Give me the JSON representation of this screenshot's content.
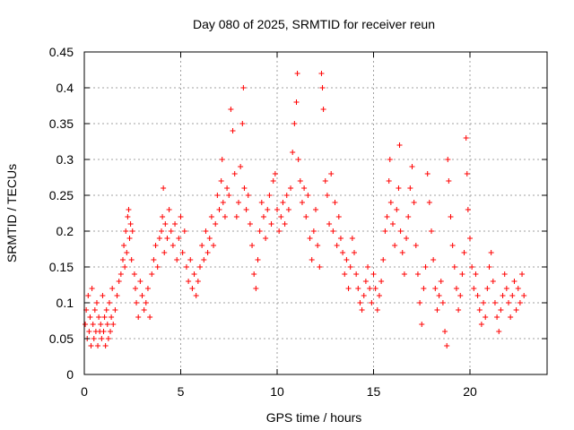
{
  "chart_data": {
    "type": "scatter",
    "title": "Day 080 of 2025, SRMTID for receiver reun",
    "xlabel": "GPS time / hours",
    "ylabel": "SRMTID / TECUs",
    "xlim": [
      0,
      24
    ],
    "ylim": [
      0,
      0.45
    ],
    "xticks": [
      0,
      5,
      10,
      15,
      20
    ],
    "xtick_labels": [
      "0",
      "5",
      "10",
      "15",
      "20"
    ],
    "yticks": [
      0,
      0.05,
      0.1,
      0.15,
      0.2,
      0.25,
      0.3,
      0.35,
      0.4,
      0.45
    ],
    "ytick_labels": [
      "0",
      "0.05",
      "0.1",
      "0.15",
      "0.2",
      "0.25",
      "0.3",
      "0.35",
      "0.4",
      "0.45"
    ],
    "grid": true,
    "marker": "+",
    "marker_color": "#ff0000",
    "series": [
      {
        "name": "SRMTID",
        "points": [
          [
            0.05,
            0.07
          ],
          [
            0.1,
            0.09
          ],
          [
            0.15,
            0.05
          ],
          [
            0.2,
            0.11
          ],
          [
            0.25,
            0.06
          ],
          [
            0.3,
            0.08
          ],
          [
            0.35,
            0.04
          ],
          [
            0.4,
            0.12
          ],
          [
            0.45,
            0.07
          ],
          [
            0.5,
            0.05
          ],
          [
            0.55,
            0.09
          ],
          [
            0.6,
            0.06
          ],
          [
            0.65,
            0.1
          ],
          [
            0.7,
            0.04
          ],
          [
            0.75,
            0.08
          ],
          [
            0.8,
            0.06
          ],
          [
            0.85,
            0.07
          ],
          [
            0.9,
            0.05
          ],
          [
            0.95,
            0.11
          ],
          [
            1.0,
            0.06
          ],
          [
            1.05,
            0.08
          ],
          [
            1.1,
            0.04
          ],
          [
            1.15,
            0.09
          ],
          [
            1.2,
            0.07
          ],
          [
            1.25,
            0.05
          ],
          [
            1.3,
            0.1
          ],
          [
            1.35,
            0.06
          ],
          [
            1.4,
            0.08
          ],
          [
            1.45,
            0.12
          ],
          [
            1.5,
            0.07
          ],
          [
            1.6,
            0.09
          ],
          [
            1.7,
            0.11
          ],
          [
            1.8,
            0.13
          ],
          [
            1.9,
            0.14
          ],
          [
            2.0,
            0.16
          ],
          [
            2.05,
            0.18
          ],
          [
            2.1,
            0.15
          ],
          [
            2.15,
            0.2
          ],
          [
            2.2,
            0.17
          ],
          [
            2.25,
            0.22
          ],
          [
            2.3,
            0.23
          ],
          [
            2.35,
            0.19
          ],
          [
            2.4,
            0.21
          ],
          [
            2.45,
            0.16
          ],
          [
            2.5,
            0.2
          ],
          [
            2.6,
            0.14
          ],
          [
            2.65,
            0.12
          ],
          [
            2.7,
            0.1
          ],
          [
            2.8,
            0.08
          ],
          [
            2.9,
            0.13
          ],
          [
            3.0,
            0.11
          ],
          [
            3.1,
            0.09
          ],
          [
            3.2,
            0.1
          ],
          [
            3.3,
            0.12
          ],
          [
            3.4,
            0.08
          ],
          [
            3.5,
            0.14
          ],
          [
            3.6,
            0.16
          ],
          [
            3.7,
            0.18
          ],
          [
            3.8,
            0.15
          ],
          [
            3.9,
            0.19
          ],
          [
            4.0,
            0.2
          ],
          [
            4.05,
            0.22
          ],
          [
            4.1,
            0.26
          ],
          [
            4.15,
            0.17
          ],
          [
            4.2,
            0.21
          ],
          [
            4.3,
            0.19
          ],
          [
            4.4,
            0.23
          ],
          [
            4.5,
            0.2
          ],
          [
            4.6,
            0.18
          ],
          [
            4.7,
            0.21
          ],
          [
            4.8,
            0.16
          ],
          [
            4.9,
            0.19
          ],
          [
            5.0,
            0.22
          ],
          [
            5.1,
            0.17
          ],
          [
            5.2,
            0.2
          ],
          [
            5.3,
            0.15
          ],
          [
            5.4,
            0.13
          ],
          [
            5.5,
            0.16
          ],
          [
            5.6,
            0.12
          ],
          [
            5.7,
            0.14
          ],
          [
            5.8,
            0.11
          ],
          [
            5.9,
            0.13
          ],
          [
            6.0,
            0.15
          ],
          [
            6.1,
            0.18
          ],
          [
            6.2,
            0.16
          ],
          [
            6.3,
            0.2
          ],
          [
            6.4,
            0.17
          ],
          [
            6.5,
            0.19
          ],
          [
            6.6,
            0.22
          ],
          [
            6.7,
            0.18
          ],
          [
            6.8,
            0.21
          ],
          [
            6.9,
            0.25
          ],
          [
            7.0,
            0.23
          ],
          [
            7.1,
            0.27
          ],
          [
            7.15,
            0.3
          ],
          [
            7.2,
            0.24
          ],
          [
            7.3,
            0.22
          ],
          [
            7.4,
            0.26
          ],
          [
            7.5,
            0.25
          ],
          [
            7.6,
            0.37
          ],
          [
            7.7,
            0.34
          ],
          [
            7.8,
            0.28
          ],
          [
            7.9,
            0.22
          ],
          [
            8.0,
            0.24
          ],
          [
            8.1,
            0.29
          ],
          [
            8.2,
            0.35
          ],
          [
            8.25,
            0.4
          ],
          [
            8.3,
            0.26
          ],
          [
            8.4,
            0.23
          ],
          [
            8.5,
            0.25
          ],
          [
            8.6,
            0.21
          ],
          [
            8.7,
            0.18
          ],
          [
            8.8,
            0.14
          ],
          [
            8.9,
            0.12
          ],
          [
            9.0,
            0.16
          ],
          [
            9.1,
            0.2
          ],
          [
            9.2,
            0.24
          ],
          [
            9.3,
            0.22
          ],
          [
            9.4,
            0.19
          ],
          [
            9.5,
            0.23
          ],
          [
            9.6,
            0.25
          ],
          [
            9.7,
            0.21
          ],
          [
            9.8,
            0.27
          ],
          [
            9.9,
            0.28
          ],
          [
            10.0,
            0.23
          ],
          [
            10.1,
            0.2
          ],
          [
            10.2,
            0.22
          ],
          [
            10.3,
            0.24
          ],
          [
            10.4,
            0.21
          ],
          [
            10.5,
            0.25
          ],
          [
            10.6,
            0.23
          ],
          [
            10.7,
            0.26
          ],
          [
            10.8,
            0.31
          ],
          [
            10.9,
            0.35
          ],
          [
            11.0,
            0.38
          ],
          [
            11.05,
            0.42
          ],
          [
            11.1,
            0.3
          ],
          [
            11.2,
            0.27
          ],
          [
            11.3,
            0.24
          ],
          [
            11.4,
            0.26
          ],
          [
            11.5,
            0.22
          ],
          [
            11.6,
            0.25
          ],
          [
            11.7,
            0.19
          ],
          [
            11.8,
            0.16
          ],
          [
            11.9,
            0.2
          ],
          [
            12.0,
            0.23
          ],
          [
            12.1,
            0.18
          ],
          [
            12.2,
            0.15
          ],
          [
            12.3,
            0.42
          ],
          [
            12.35,
            0.4
          ],
          [
            12.4,
            0.37
          ],
          [
            12.5,
            0.27
          ],
          [
            12.6,
            0.25
          ],
          [
            12.7,
            0.21
          ],
          [
            12.8,
            0.28
          ],
          [
            12.9,
            0.2
          ],
          [
            13.0,
            0.24
          ],
          [
            13.1,
            0.18
          ],
          [
            13.2,
            0.22
          ],
          [
            13.3,
            0.19
          ],
          [
            13.4,
            0.17
          ],
          [
            13.5,
            0.14
          ],
          [
            13.6,
            0.16
          ],
          [
            13.7,
            0.12
          ],
          [
            13.8,
            0.15
          ],
          [
            13.9,
            0.19
          ],
          [
            14.0,
            0.17
          ],
          [
            14.1,
            0.14
          ],
          [
            14.2,
            0.12
          ],
          [
            14.3,
            0.1
          ],
          [
            14.4,
            0.09
          ],
          [
            14.5,
            0.11
          ],
          [
            14.6,
            0.13
          ],
          [
            14.7,
            0.15
          ],
          [
            14.8,
            0.12
          ],
          [
            14.9,
            0.1
          ],
          [
            15.0,
            0.14
          ],
          [
            15.1,
            0.12
          ],
          [
            15.2,
            0.09
          ],
          [
            15.3,
            0.11
          ],
          [
            15.4,
            0.13
          ],
          [
            15.5,
            0.16
          ],
          [
            15.6,
            0.2
          ],
          [
            15.7,
            0.22
          ],
          [
            15.8,
            0.27
          ],
          [
            15.85,
            0.3
          ],
          [
            15.9,
            0.24
          ],
          [
            16.0,
            0.21
          ],
          [
            16.1,
            0.18
          ],
          [
            16.2,
            0.23
          ],
          [
            16.3,
            0.26
          ],
          [
            16.35,
            0.32
          ],
          [
            16.4,
            0.2
          ],
          [
            16.5,
            0.17
          ],
          [
            16.6,
            0.14
          ],
          [
            16.7,
            0.19
          ],
          [
            16.8,
            0.22
          ],
          [
            16.9,
            0.26
          ],
          [
            17.0,
            0.29
          ],
          [
            17.1,
            0.24
          ],
          [
            17.2,
            0.18
          ],
          [
            17.3,
            0.14
          ],
          [
            17.4,
            0.1
          ],
          [
            17.5,
            0.07
          ],
          [
            17.6,
            0.12
          ],
          [
            17.7,
            0.15
          ],
          [
            17.8,
            0.28
          ],
          [
            17.9,
            0.24
          ],
          [
            18.0,
            0.2
          ],
          [
            18.1,
            0.16
          ],
          [
            18.2,
            0.12
          ],
          [
            18.3,
            0.09
          ],
          [
            18.4,
            0.11
          ],
          [
            18.5,
            0.13
          ],
          [
            18.6,
            0.1
          ],
          [
            18.7,
            0.06
          ],
          [
            18.8,
            0.04
          ],
          [
            18.85,
            0.3
          ],
          [
            18.9,
            0.27
          ],
          [
            19.0,
            0.22
          ],
          [
            19.1,
            0.18
          ],
          [
            19.2,
            0.15
          ],
          [
            19.3,
            0.12
          ],
          [
            19.4,
            0.09
          ],
          [
            19.5,
            0.11
          ],
          [
            19.6,
            0.14
          ],
          [
            19.7,
            0.17
          ],
          [
            19.8,
            0.33
          ],
          [
            19.85,
            0.28
          ],
          [
            19.9,
            0.23
          ],
          [
            20.0,
            0.19
          ],
          [
            20.1,
            0.15
          ],
          [
            20.2,
            0.12
          ],
          [
            20.3,
            0.14
          ],
          [
            20.4,
            0.11
          ],
          [
            20.5,
            0.09
          ],
          [
            20.6,
            0.07
          ],
          [
            20.7,
            0.1
          ],
          [
            20.8,
            0.08
          ],
          [
            20.9,
            0.12
          ],
          [
            21.0,
            0.15
          ],
          [
            21.1,
            0.17
          ],
          [
            21.2,
            0.13
          ],
          [
            21.3,
            0.1
          ],
          [
            21.4,
            0.08
          ],
          [
            21.5,
            0.06
          ],
          [
            21.6,
            0.09
          ],
          [
            21.7,
            0.11
          ],
          [
            21.8,
            0.14
          ],
          [
            21.9,
            0.12
          ],
          [
            22.0,
            0.1
          ],
          [
            22.1,
            0.08
          ],
          [
            22.2,
            0.11
          ],
          [
            22.3,
            0.13
          ],
          [
            22.4,
            0.09
          ],
          [
            22.5,
            0.12
          ],
          [
            22.6,
            0.1
          ],
          [
            22.7,
            0.14
          ],
          [
            22.8,
            0.11
          ]
        ]
      }
    ]
  }
}
